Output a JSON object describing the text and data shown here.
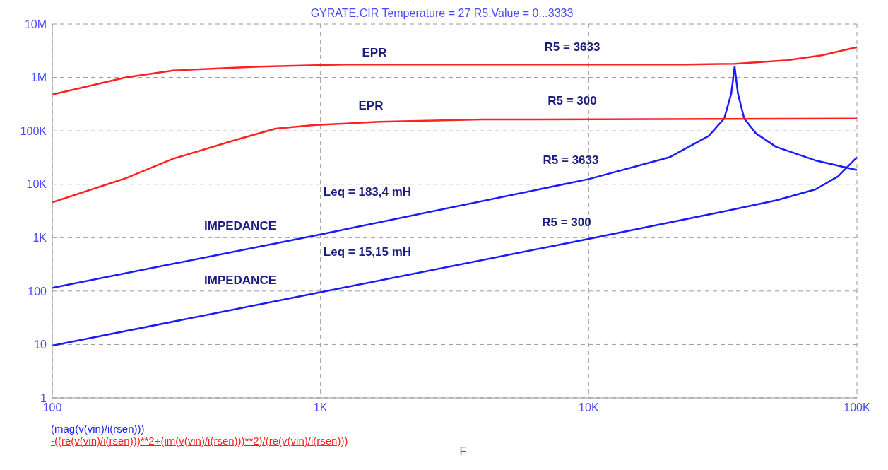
{
  "chart_data": {
    "type": "line",
    "title": "GYRATE.CIR Temperature = 27 R5.Value = 0...3333",
    "xlabel": "F",
    "log": "xy",
    "grid": true,
    "legend": "bottom left",
    "marker": "none",
    "line_style": "solid",
    "xlim": [
      100,
      100000
    ],
    "xticks": [
      100,
      {
        "value": 1000,
        "label": "1K"
      },
      {
        "value": 10000,
        "label": "10K"
      },
      {
        "value": 100000,
        "label": "100K"
      }
    ],
    "ylim": [
      1,
      10000000
    ],
    "yticks": [
      1,
      10,
      100,
      {
        "value": 1000,
        "label": "1K"
      },
      {
        "value": 10000,
        "label": "10K"
      },
      {
        "value": 100000,
        "label": "100K"
      },
      {
        "value": 1000000,
        "label": "1M"
      },
      {
        "value": 10000000,
        "label": "10M"
      }
    ],
    "series": [
      {
        "name": "(mag(v(vin)/i(rsen)))",
        "color": "#1a1aff",
        "x": [
          100,
          1000,
          10000,
          20000,
          28000,
          32000,
          34000,
          35000,
          36000,
          38000,
          42000,
          50000,
          70000,
          100000
        ],
        "values": [
          115,
          1150,
          12500,
          32000,
          80000,
          170000,
          500000,
          1600000,
          500000,
          170000,
          90000,
          50000,
          28000,
          18500
        ]
      },
      {
        "color": "#1a1aff",
        "x": [
          100,
          1000,
          10000,
          30000,
          50000,
          70000,
          85000,
          100000
        ],
        "values": [
          9.5,
          95,
          950,
          2900,
          5000,
          8000,
          14000,
          32000
        ]
      },
      {
        "name": "-((re(v(vin)/i(rsen)))**2+(im(v(vin)/i(rsen)))**2)/(re(v(vin)/i(rsen)))",
        "color": "#ff2020",
        "x": [
          100,
          188,
          282,
          590,
          1230,
          23000,
          35000,
          55000,
          74000,
          100000
        ],
        "values": [
          480000,
          1000000,
          1350000,
          1600000,
          1750000,
          1750000,
          1800000,
          2100000,
          2600000,
          3700000
        ]
      },
      {
        "color": "#ff2020",
        "x": [
          100,
          188,
          282,
          480,
          680,
          940,
          1660,
          4000,
          100000
        ],
        "values": [
          4600,
          13000,
          30000,
          67000,
          110000,
          128000,
          148000,
          163000,
          170000
        ]
      }
    ],
    "annotations": [
      "EPR",
      "R5 = 3633",
      "EPR",
      "R5 = 300",
      "R5 = 3633",
      "Leq = 183,4 mH",
      "IMPEDANCE",
      "R5 = 300",
      "Leq = 15,15 mH",
      "IMPEDANCE"
    ]
  }
}
